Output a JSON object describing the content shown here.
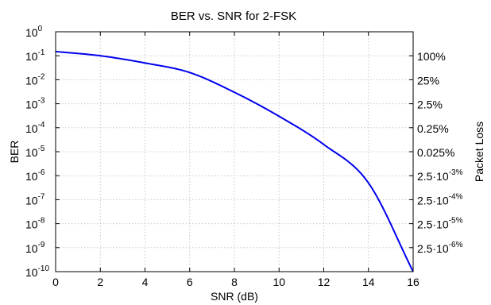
{
  "chart_data": {
    "type": "line",
    "title": "BER vs. SNR for 2-FSK",
    "xlabel": "SNR (dB)",
    "ylabel": "BER",
    "y2label": "Packet Loss",
    "xlim": [
      0,
      16
    ],
    "ylim": [
      1e-10,
      1
    ],
    "yscale": "log",
    "grid": true,
    "x_ticks": [
      "0",
      "2",
      "4",
      "6",
      "8",
      "10",
      "12",
      "14",
      "16"
    ],
    "y_ticks": [
      {
        "base": "10",
        "exp": "0"
      },
      {
        "base": "10",
        "exp": "-1"
      },
      {
        "base": "10",
        "exp": "-2"
      },
      {
        "base": "10",
        "exp": "-3"
      },
      {
        "base": "10",
        "exp": "-4"
      },
      {
        "base": "10",
        "exp": "-5"
      },
      {
        "base": "10",
        "exp": "-6"
      },
      {
        "base": "10",
        "exp": "-7"
      },
      {
        "base": "10",
        "exp": "-8"
      },
      {
        "base": "10",
        "exp": "-9"
      },
      {
        "base": "10",
        "exp": "-10"
      }
    ],
    "y2_ticks": [
      {
        "level": 0.1,
        "base": "100%",
        "exp": ""
      },
      {
        "level": 0.01,
        "base": "25%",
        "exp": ""
      },
      {
        "level": 0.001,
        "base": "2.5%",
        "exp": ""
      },
      {
        "level": 0.0001,
        "base": "0.25%",
        "exp": ""
      },
      {
        "level": 1e-05,
        "base": "0.025%",
        "exp": ""
      },
      {
        "level": 1e-06,
        "base": "2.5·10",
        "exp": "-3%"
      },
      {
        "level": 1e-07,
        "base": "2.5·10",
        "exp": "-4%"
      },
      {
        "level": 1e-08,
        "base": "2.5·10",
        "exp": "-5%"
      },
      {
        "level": 1e-09,
        "base": "2.5·10",
        "exp": "-6%"
      }
    ],
    "series": [
      {
        "color": "#0000ee",
        "x": [
          0,
          2,
          4,
          6,
          8,
          10,
          12,
          14,
          16
        ],
        "y": [
          0.15,
          0.1,
          0.05,
          0.02,
          0.003,
          0.0003,
          2e-05,
          5e-07,
          1e-10
        ]
      }
    ]
  }
}
